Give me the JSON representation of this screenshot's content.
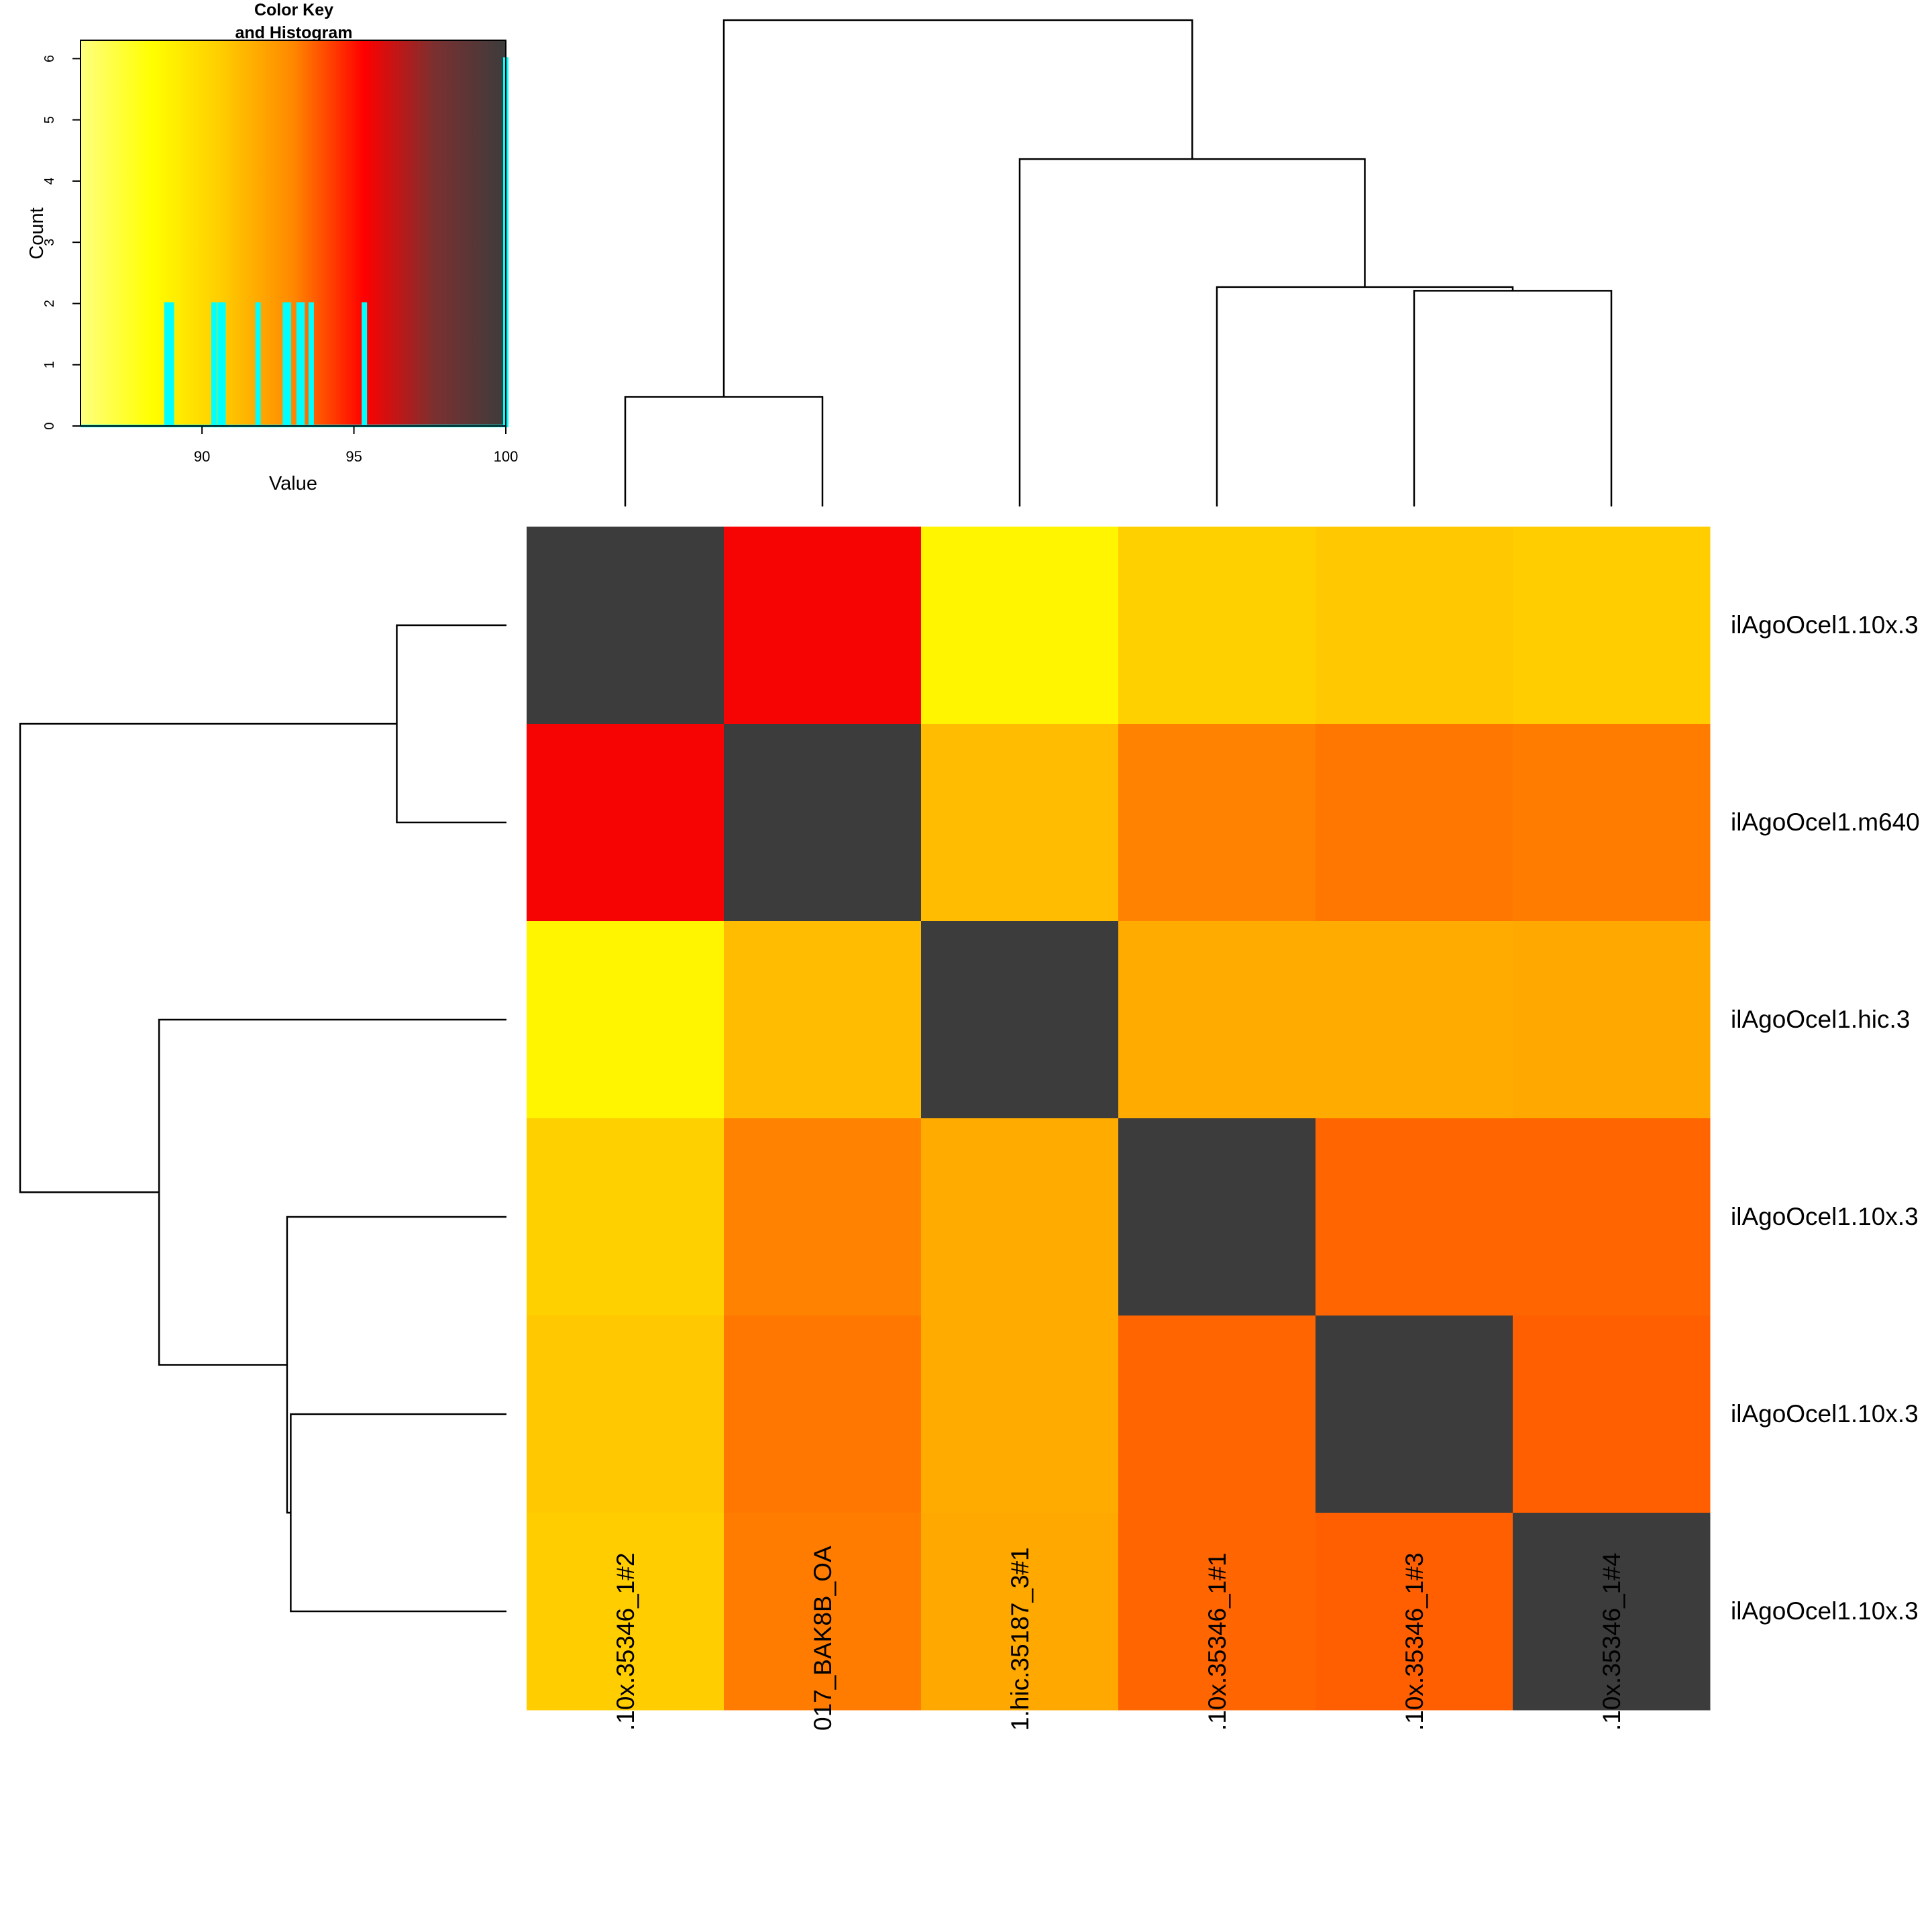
{
  "chart_data": {
    "type": "heatmap",
    "rows": [
      "ilAgoOcel1.10x.3",
      "ilAgoOcel1.m640",
      "ilAgoOcel1.hic.3",
      "ilAgoOcel1.10x.3",
      "ilAgoOcel1.10x.3",
      "ilAgoOcel1.10x.3"
    ],
    "columns": [
      ".10x.35346_1#2",
      "017_BAK8B_OA",
      "1.hic.35187_3#1",
      ".10x.35346_1#1",
      ".10x.35346_1#3",
      ".10x.35346_1#4"
    ],
    "values": [
      [
        100,
        95.5,
        88.8,
        90.5,
        90.8,
        90.6
      ],
      [
        95.5,
        100,
        91.2,
        93.1,
        93.3,
        93.2
      ],
      [
        88.8,
        91.2,
        100,
        91.8,
        91.8,
        91.9
      ],
      [
        90.5,
        93.1,
        91.8,
        100,
        93.6,
        93.6
      ],
      [
        90.8,
        93.3,
        91.8,
        93.6,
        100,
        93.7
      ],
      [
        90.6,
        93.2,
        91.9,
        93.6,
        93.7,
        100
      ]
    ],
    "color_scale": {
      "range": [
        86,
        100
      ],
      "stops": [
        "#ffff80",
        "#ffff00",
        "#ffcc00",
        "#ff8800",
        "#ff0000",
        "#7a3030",
        "#3c3c3c"
      ]
    },
    "color_key": {
      "title": "Color Key",
      "subtitle": "and Histogram",
      "xlabel": "Value",
      "ylabel": "Count",
      "x_ticks": [
        "90",
        "95",
        "100"
      ],
      "y_ticks": [
        "0",
        "1",
        "2",
        "3",
        "4",
        "5",
        "6"
      ],
      "xlim": [
        86,
        100
      ],
      "ylim": [
        0,
        6.3
      ],
      "histogram_color": "#00ffff",
      "histogram": [
        {
          "x": 88.8,
          "count": 2
        },
        {
          "x": 88.95,
          "count": 2
        },
        {
          "x": 90.35,
          "count": 2
        },
        {
          "x": 90.55,
          "count": 2
        },
        {
          "x": 90.65,
          "count": 2
        },
        {
          "x": 91.8,
          "count": 2
        },
        {
          "x": 92.7,
          "count": 2
        },
        {
          "x": 92.8,
          "count": 2
        },
        {
          "x": 93.15,
          "count": 2
        },
        {
          "x": 93.25,
          "count": 2
        },
        {
          "x": 93.55,
          "count": 2
        },
        {
          "x": 95.3,
          "count": 2
        },
        {
          "x": 100,
          "count": 6
        }
      ]
    },
    "dendrogram": {
      "merges": [
        {
          "a": 4,
          "b": 5,
          "height": 2.95
        },
        {
          "a": 3,
          "b": "m0",
          "height": 3.0
        },
        {
          "a": 0,
          "b": 1,
          "height": 1.5
        },
        {
          "a": 2,
          "b": "m1",
          "height": 4.75
        },
        {
          "a": "m2",
          "b": "m3",
          "height": 6.65
        }
      ],
      "max_height": 6.65
    }
  }
}
